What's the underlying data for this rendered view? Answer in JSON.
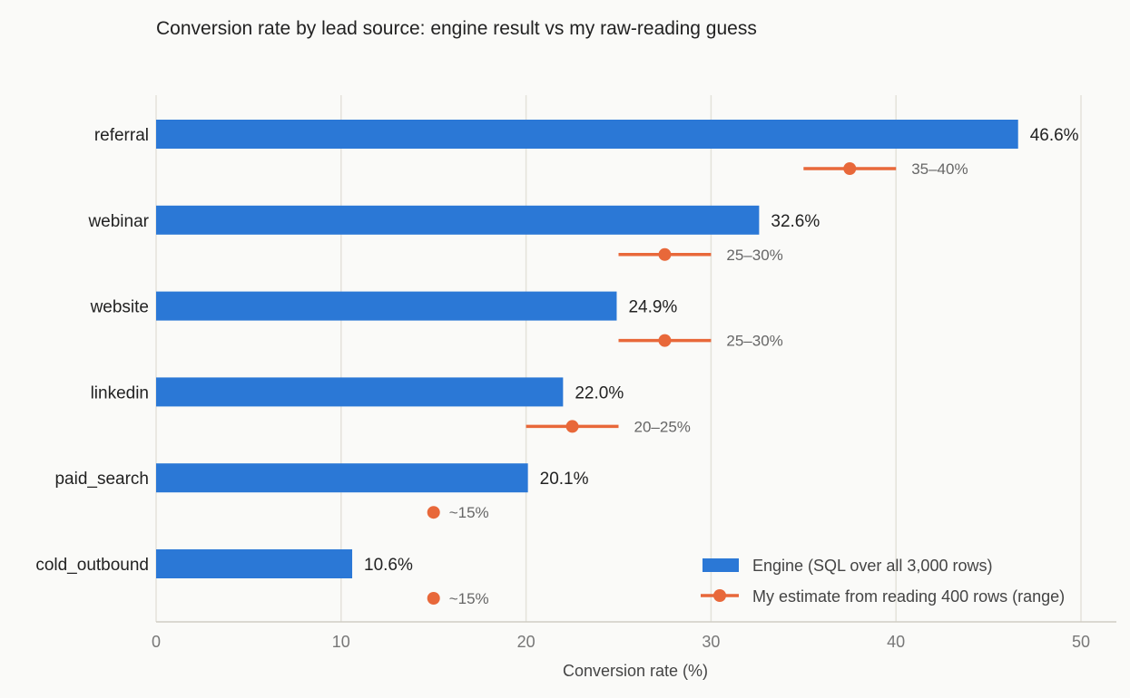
{
  "chart_data": {
    "type": "bar",
    "orientation": "horizontal",
    "title": "Conversion rate by lead source: engine result vs my raw-reading guess",
    "xlabel": "Conversion rate (%)",
    "ylabel": "",
    "xlim": [
      0,
      52
    ],
    "xticks": [
      0,
      10,
      20,
      30,
      40,
      50
    ],
    "grid": true,
    "legend_position": "bottom-right",
    "categories": [
      "referral",
      "webinar",
      "website",
      "linkedin",
      "paid_search",
      "cold_outbound"
    ],
    "series": [
      {
        "name": "Engine (SQL over all 3,000 rows)",
        "color": "#2b78d6",
        "values": [
          46.6,
          32.6,
          24.9,
          22.0,
          20.1,
          10.6
        ],
        "labels": [
          "46.6%",
          "32.6%",
          "24.9%",
          "22.0%",
          "20.1%",
          "10.6%"
        ]
      },
      {
        "name": "My estimate from reading 400 rows (range)",
        "color": "#e8683a",
        "ranges": [
          [
            35,
            40
          ],
          [
            25,
            30
          ],
          [
            25,
            30
          ],
          [
            20,
            25
          ],
          [
            15,
            15
          ],
          [
            15,
            15
          ]
        ],
        "points": [
          37.5,
          27.5,
          27.5,
          22.5,
          15,
          15
        ],
        "labels": [
          "35–40%",
          "25–30%",
          "25–30%",
          "20–25%",
          "~15%",
          "~15%"
        ]
      }
    ]
  }
}
